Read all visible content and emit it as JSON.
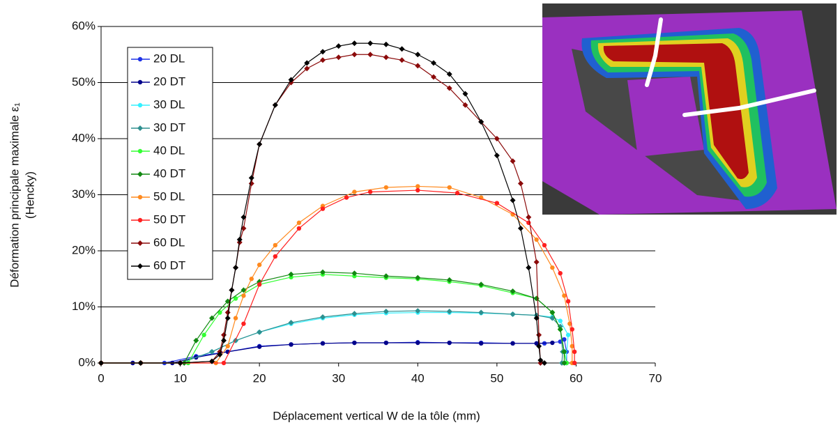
{
  "chart_data": {
    "type": "line",
    "xlabel": "Déplacement vertical W de la tôle (mm)",
    "ylabel": [
      "Déformation principale maximale ε₁",
      "(Hencky)"
    ],
    "xlim": [
      0,
      70
    ],
    "xticks": [
      0,
      10,
      20,
      30,
      40,
      50,
      60,
      70
    ],
    "ylim": [
      0,
      60
    ],
    "yticks": [
      {
        "value": 0,
        "label": "0%"
      },
      {
        "value": 10,
        "label": "10%"
      },
      {
        "value": 20,
        "label": "20%"
      },
      {
        "value": 30,
        "label": "30%"
      },
      {
        "value": 40,
        "label": "40%"
      },
      {
        "value": 50,
        "label": "50%"
      },
      {
        "value": 60,
        "label": "60%"
      }
    ],
    "grid": true,
    "legend": "upper left",
    "series": [
      {
        "name": "20 DL",
        "color": "#1e32e6",
        "marker": "circle",
        "x": [
          0,
          4,
          8,
          12,
          16,
          20,
          24,
          28,
          32,
          36,
          40,
          44,
          48,
          52,
          56,
          58,
          58.5,
          58.8,
          58.8
        ],
        "values": [
          0,
          0,
          0,
          1.2,
          2,
          3,
          3.3,
          3.5,
          3.6,
          3.6,
          3.7,
          3.6,
          3.6,
          3.5,
          3.5,
          3.8,
          4.2,
          2,
          0
        ]
      },
      {
        "name": "20 DT",
        "color": "#00008b",
        "marker": "circle",
        "x": [
          0,
          4,
          9,
          12,
          16,
          20,
          24,
          28,
          32,
          36,
          40,
          44,
          48,
          52,
          55,
          57
        ],
        "values": [
          0,
          0,
          0,
          1,
          2,
          2.9,
          3.3,
          3.5,
          3.6,
          3.6,
          3.6,
          3.6,
          3.5,
          3.5,
          3.5,
          3.6
        ]
      },
      {
        "name": "30 DL",
        "color": "#33f0ff",
        "marker": "circle",
        "x": [
          0,
          5,
          10,
          14,
          17,
          20,
          24,
          28,
          32,
          36,
          40,
          44,
          48,
          52,
          55,
          57,
          58,
          59,
          58.7
        ],
        "values": [
          0,
          0,
          0,
          2,
          4,
          5.5,
          7,
          8,
          8.6,
          8.9,
          9,
          9,
          8.9,
          8.7,
          8.5,
          8.2,
          7.5,
          5,
          0
        ]
      },
      {
        "name": "30 DT",
        "color": "#2e8f8f",
        "marker": "diamond",
        "x": [
          0,
          5,
          10,
          14,
          17,
          20,
          24,
          28,
          32,
          36,
          40,
          44,
          48,
          52,
          55,
          57,
          58,
          58.3,
          58.2
        ],
        "values": [
          0,
          0,
          0,
          2,
          4,
          5.5,
          7.2,
          8.2,
          8.8,
          9.2,
          9.3,
          9.2,
          9,
          8.7,
          8.5,
          8,
          6.5,
          2,
          0
        ]
      },
      {
        "name": "40 DL",
        "color": "#33ff33",
        "marker": "circle",
        "x": [
          0,
          5,
          11,
          13,
          15,
          17,
          20,
          24,
          28,
          32,
          36,
          40,
          44,
          48,
          52,
          55,
          57,
          58,
          58.5,
          58.8
        ],
        "values": [
          0,
          0,
          0,
          5,
          9,
          11.5,
          14,
          15.3,
          15.8,
          15.5,
          15.2,
          15,
          14.5,
          13.8,
          12.5,
          11.5,
          9,
          6,
          2,
          0
        ]
      },
      {
        "name": "40 DT",
        "color": "#118811",
        "marker": "diamond",
        "x": [
          0,
          5,
          10.5,
          12,
          14,
          16,
          18,
          20,
          24,
          28,
          32,
          36,
          40,
          44,
          48,
          52,
          55,
          57,
          58,
          58.5,
          58.5
        ],
        "values": [
          0,
          0,
          0,
          4,
          8,
          11,
          13,
          14.5,
          15.8,
          16.2,
          16,
          15.5,
          15.2,
          14.8,
          14,
          12.8,
          11.5,
          9,
          6,
          2,
          0
        ]
      },
      {
        "name": "50 DL",
        "color": "#ff8a1f",
        "marker": "circle",
        "x": [
          0,
          5,
          10,
          14.5,
          16,
          17,
          18,
          19,
          20,
          22,
          25,
          28,
          32,
          36,
          40,
          44,
          48,
          52,
          55,
          57,
          58.5,
          59.2,
          59.5,
          59.5
        ],
        "values": [
          0,
          0,
          0,
          0,
          3,
          8,
          12,
          15,
          17.5,
          21,
          25,
          28,
          30.5,
          31.3,
          31.5,
          31.3,
          29.5,
          26.5,
          22,
          17,
          12,
          7,
          3,
          0
        ]
      },
      {
        "name": "50 DT",
        "color": "#ff2020",
        "marker": "circle",
        "x": [
          0,
          5,
          10,
          15.5,
          18,
          20,
          22,
          25,
          28,
          31,
          34,
          40,
          45,
          50,
          54,
          56,
          58,
          59,
          59.5,
          59.8,
          59.8
        ],
        "values": [
          0,
          0,
          0,
          0,
          7,
          14,
          19,
          24,
          27.5,
          29.5,
          30.5,
          30.8,
          30.3,
          28.5,
          25,
          21,
          16,
          11,
          6,
          2,
          0
        ]
      },
      {
        "name": "60 DL",
        "color": "#8b0a0a",
        "marker": "diamond",
        "x": [
          0,
          5,
          10,
          14,
          15,
          15.5,
          16,
          16.5,
          17,
          17.5,
          18,
          19,
          20,
          22,
          24,
          26,
          28,
          30,
          32,
          34,
          36,
          38,
          40,
          42,
          44,
          46,
          48,
          50,
          52,
          53,
          54,
          55,
          55.3,
          55.5
        ],
        "values": [
          0,
          0,
          0,
          0.3,
          2,
          5,
          9,
          13,
          17,
          21.5,
          24,
          32,
          39,
          46,
          50,
          52.5,
          54,
          54.5,
          55,
          55,
          54.5,
          54,
          53,
          51,
          49,
          46,
          43,
          40,
          36,
          32,
          26,
          18,
          5,
          0
        ]
      },
      {
        "name": "60 DT",
        "color": "#000000",
        "marker": "diamond",
        "x": [
          0,
          5,
          10,
          14,
          15,
          15.5,
          16,
          16.5,
          17,
          17.5,
          18,
          19,
          20,
          22,
          24,
          26,
          28,
          30,
          32,
          34,
          36,
          38,
          40,
          42,
          44,
          46,
          48,
          50,
          52,
          53,
          54,
          55,
          55.3,
          55.5,
          56
        ],
        "values": [
          0,
          0,
          0,
          0.3,
          1.5,
          4,
          8,
          13,
          17,
          22,
          26,
          33,
          39,
          46,
          50.5,
          53.5,
          55.5,
          56.5,
          57,
          57,
          56.8,
          56,
          55,
          53.5,
          51.5,
          48,
          43,
          37,
          29,
          24,
          17,
          8,
          3,
          0.5,
          0
        ]
      }
    ]
  }
}
